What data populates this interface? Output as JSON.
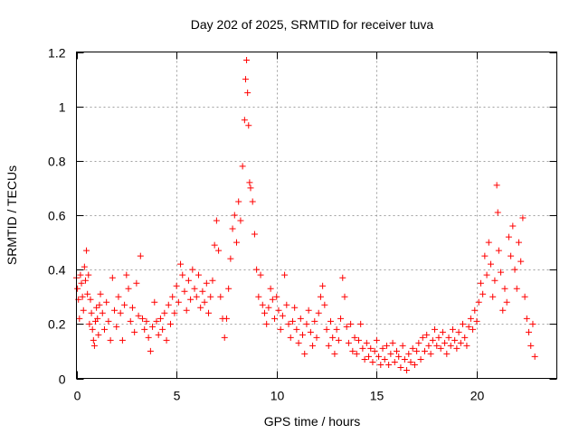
{
  "chart_data": {
    "type": "scatter",
    "title": "Day 202 of 2025, SRMTID for receiver tuva",
    "xlabel": "GPS time / hours",
    "ylabel": "SRMTID / TECUs",
    "xlim": [
      0,
      24
    ],
    "ylim": [
      0,
      1.2
    ],
    "xticks": [
      0,
      5,
      10,
      15,
      20
    ],
    "xtick_labels": [
      "0",
      "5",
      "10",
      "15",
      "20"
    ],
    "yticks": [
      0,
      0.2,
      0.4,
      0.6,
      0.8,
      1.0,
      1.2
    ],
    "ytick_labels": [
      "0",
      "0.2",
      "0.4",
      "0.6",
      "0.8",
      "1",
      "1.2"
    ],
    "grid": true,
    "marker": "+",
    "marker_color": "#ff0000",
    "series": [
      {
        "name": "SRMTID",
        "points": [
          [
            0.0,
            0.37
          ],
          [
            0.05,
            0.33
          ],
          [
            0.1,
            0.29
          ],
          [
            0.15,
            0.22
          ],
          [
            0.2,
            0.38
          ],
          [
            0.25,
            0.35
          ],
          [
            0.3,
            0.3
          ],
          [
            0.35,
            0.25
          ],
          [
            0.4,
            0.41
          ],
          [
            0.45,
            0.36
          ],
          [
            0.5,
            0.47
          ],
          [
            0.55,
            0.31
          ],
          [
            0.6,
            0.38
          ],
          [
            0.65,
            0.2
          ],
          [
            0.7,
            0.29
          ],
          [
            0.75,
            0.24
          ],
          [
            0.8,
            0.18
          ],
          [
            0.85,
            0.14
          ],
          [
            0.9,
            0.12
          ],
          [
            0.95,
            0.21
          ],
          [
            1.0,
            0.26
          ],
          [
            1.05,
            0.22
          ],
          [
            1.1,
            0.16
          ],
          [
            1.15,
            0.27
          ],
          [
            1.2,
            0.31
          ],
          [
            1.3,
            0.24
          ],
          [
            1.4,
            0.18
          ],
          [
            1.5,
            0.28
          ],
          [
            1.6,
            0.21
          ],
          [
            1.7,
            0.14
          ],
          [
            1.8,
            0.37
          ],
          [
            1.9,
            0.25
          ],
          [
            2.0,
            0.19
          ],
          [
            2.1,
            0.3
          ],
          [
            2.2,
            0.24
          ],
          [
            2.3,
            0.14
          ],
          [
            2.4,
            0.27
          ],
          [
            2.5,
            0.38
          ],
          [
            2.6,
            0.33
          ],
          [
            2.7,
            0.21
          ],
          [
            2.8,
            0.26
          ],
          [
            2.9,
            0.17
          ],
          [
            3.0,
            0.35
          ],
          [
            3.1,
            0.23
          ],
          [
            3.2,
            0.45
          ],
          [
            3.3,
            0.22
          ],
          [
            3.4,
            0.18
          ],
          [
            3.5,
            0.21
          ],
          [
            3.6,
            0.15
          ],
          [
            3.7,
            0.1
          ],
          [
            3.8,
            0.19
          ],
          [
            3.9,
            0.28
          ],
          [
            4.0,
            0.21
          ],
          [
            4.1,
            0.16
          ],
          [
            4.2,
            0.22
          ],
          [
            4.3,
            0.18
          ],
          [
            4.4,
            0.24
          ],
          [
            4.5,
            0.14
          ],
          [
            4.6,
            0.27
          ],
          [
            4.7,
            0.2
          ],
          [
            4.8,
            0.3
          ],
          [
            4.9,
            0.24
          ],
          [
            5.0,
            0.34
          ],
          [
            5.1,
            0.28
          ],
          [
            5.2,
            0.42
          ],
          [
            5.3,
            0.38
          ],
          [
            5.4,
            0.32
          ],
          [
            5.5,
            0.25
          ],
          [
            5.6,
            0.36
          ],
          [
            5.7,
            0.29
          ],
          [
            5.8,
            0.4
          ],
          [
            5.9,
            0.33
          ],
          [
            6.0,
            0.3
          ],
          [
            6.1,
            0.38
          ],
          [
            6.2,
            0.26
          ],
          [
            6.3,
            0.32
          ],
          [
            6.4,
            0.28
          ],
          [
            6.5,
            0.35
          ],
          [
            6.6,
            0.24
          ],
          [
            6.7,
            0.3
          ],
          [
            6.8,
            0.36
          ],
          [
            6.9,
            0.49
          ],
          [
            7.0,
            0.58
          ],
          [
            7.1,
            0.47
          ],
          [
            7.2,
            0.3
          ],
          [
            7.3,
            0.22
          ],
          [
            7.4,
            0.15
          ],
          [
            7.5,
            0.22
          ],
          [
            7.6,
            0.33
          ],
          [
            7.7,
            0.44
          ],
          [
            7.8,
            0.55
          ],
          [
            7.9,
            0.6
          ],
          [
            8.0,
            0.5
          ],
          [
            8.1,
            0.65
          ],
          [
            8.2,
            0.58
          ],
          [
            8.3,
            0.78
          ],
          [
            8.4,
            0.95
          ],
          [
            8.45,
            1.1
          ],
          [
            8.5,
            1.17
          ],
          [
            8.55,
            1.05
          ],
          [
            8.6,
            0.93
          ],
          [
            8.65,
            0.72
          ],
          [
            8.7,
            0.7
          ],
          [
            8.8,
            0.65
          ],
          [
            8.9,
            0.53
          ],
          [
            9.0,
            0.4
          ],
          [
            9.1,
            0.3
          ],
          [
            9.2,
            0.38
          ],
          [
            9.3,
            0.27
          ],
          [
            9.4,
            0.24
          ],
          [
            9.5,
            0.2
          ],
          [
            9.6,
            0.26
          ],
          [
            9.7,
            0.33
          ],
          [
            9.8,
            0.29
          ],
          [
            9.9,
            0.22
          ],
          [
            10.0,
            0.3
          ],
          [
            10.1,
            0.25
          ],
          [
            10.2,
            0.18
          ],
          [
            10.3,
            0.23
          ],
          [
            10.4,
            0.38
          ],
          [
            10.5,
            0.27
          ],
          [
            10.6,
            0.2
          ],
          [
            10.7,
            0.15
          ],
          [
            10.8,
            0.21
          ],
          [
            10.9,
            0.26
          ],
          [
            11.0,
            0.18
          ],
          [
            11.1,
            0.13
          ],
          [
            11.2,
            0.22
          ],
          [
            11.3,
            0.16
          ],
          [
            11.4,
            0.09
          ],
          [
            11.5,
            0.2
          ],
          [
            11.6,
            0.25
          ],
          [
            11.7,
            0.17
          ],
          [
            11.8,
            0.12
          ],
          [
            11.9,
            0.21
          ],
          [
            12.0,
            0.15
          ],
          [
            12.1,
            0.24
          ],
          [
            12.2,
            0.3
          ],
          [
            12.3,
            0.34
          ],
          [
            12.4,
            0.27
          ],
          [
            12.5,
            0.18
          ],
          [
            12.6,
            0.12
          ],
          [
            12.7,
            0.21
          ],
          [
            12.8,
            0.15
          ],
          [
            12.9,
            0.09
          ],
          [
            13.0,
            0.18
          ],
          [
            13.1,
            0.14
          ],
          [
            13.2,
            0.22
          ],
          [
            13.3,
            0.37
          ],
          [
            13.4,
            0.3
          ],
          [
            13.5,
            0.19
          ],
          [
            13.6,
            0.13
          ],
          [
            13.7,
            0.2
          ],
          [
            13.8,
            0.1
          ],
          [
            13.9,
            0.15
          ],
          [
            14.0,
            0.09
          ],
          [
            14.1,
            0.14
          ],
          [
            14.2,
            0.2
          ],
          [
            14.3,
            0.11
          ],
          [
            14.4,
            0.07
          ],
          [
            14.5,
            0.13
          ],
          [
            14.6,
            0.08
          ],
          [
            14.7,
            0.11
          ],
          [
            14.8,
            0.06
          ],
          [
            14.9,
            0.1
          ],
          [
            15.0,
            0.14
          ],
          [
            15.1,
            0.08
          ],
          [
            15.2,
            0.05
          ],
          [
            15.3,
            0.11
          ],
          [
            15.4,
            0.07
          ],
          [
            15.5,
            0.12
          ],
          [
            15.6,
            0.05
          ],
          [
            15.7,
            0.09
          ],
          [
            15.8,
            0.13
          ],
          [
            15.9,
            0.06
          ],
          [
            16.0,
            0.1
          ],
          [
            16.1,
            0.08
          ],
          [
            16.2,
            0.04
          ],
          [
            16.3,
            0.12
          ],
          [
            16.4,
            0.07
          ],
          [
            16.5,
            0.03
          ],
          [
            16.6,
            0.09
          ],
          [
            16.7,
            0.06
          ],
          [
            16.8,
            0.11
          ],
          [
            16.9,
            0.05
          ],
          [
            17.0,
            0.1
          ],
          [
            17.1,
            0.13
          ],
          [
            17.2,
            0.07
          ],
          [
            17.3,
            0.15
          ],
          [
            17.4,
            0.1
          ],
          [
            17.5,
            0.16
          ],
          [
            17.6,
            0.12
          ],
          [
            17.7,
            0.09
          ],
          [
            17.8,
            0.14
          ],
          [
            17.9,
            0.18
          ],
          [
            18.0,
            0.12
          ],
          [
            18.1,
            0.15
          ],
          [
            18.2,
            0.11
          ],
          [
            18.3,
            0.17
          ],
          [
            18.4,
            0.13
          ],
          [
            18.5,
            0.09
          ],
          [
            18.6,
            0.15
          ],
          [
            18.7,
            0.12
          ],
          [
            18.8,
            0.18
          ],
          [
            18.9,
            0.14
          ],
          [
            19.0,
            0.11
          ],
          [
            19.1,
            0.17
          ],
          [
            19.2,
            0.13
          ],
          [
            19.3,
            0.2
          ],
          [
            19.4,
            0.15
          ],
          [
            19.5,
            0.12
          ],
          [
            19.6,
            0.19
          ],
          [
            19.7,
            0.22
          ],
          [
            19.8,
            0.18
          ],
          [
            19.9,
            0.25
          ],
          [
            20.0,
            0.21
          ],
          [
            20.1,
            0.28
          ],
          [
            20.2,
            0.35
          ],
          [
            20.3,
            0.31
          ],
          [
            20.4,
            0.45
          ],
          [
            20.5,
            0.38
          ],
          [
            20.6,
            0.5
          ],
          [
            20.7,
            0.42
          ],
          [
            20.8,
            0.3
          ],
          [
            20.9,
            0.36
          ],
          [
            21.0,
            0.71
          ],
          [
            21.05,
            0.61
          ],
          [
            21.1,
            0.47
          ],
          [
            21.2,
            0.39
          ],
          [
            21.3,
            0.25
          ],
          [
            21.4,
            0.33
          ],
          [
            21.5,
            0.28
          ],
          [
            21.6,
            0.52
          ],
          [
            21.7,
            0.45
          ],
          [
            21.8,
            0.56
          ],
          [
            21.9,
            0.4
          ],
          [
            22.0,
            0.33
          ],
          [
            22.1,
            0.5
          ],
          [
            22.2,
            0.43
          ],
          [
            22.3,
            0.59
          ],
          [
            22.4,
            0.3
          ],
          [
            22.5,
            0.22
          ],
          [
            22.6,
            0.17
          ],
          [
            22.7,
            0.12
          ],
          [
            22.8,
            0.2
          ],
          [
            22.9,
            0.08
          ]
        ]
      }
    ]
  }
}
